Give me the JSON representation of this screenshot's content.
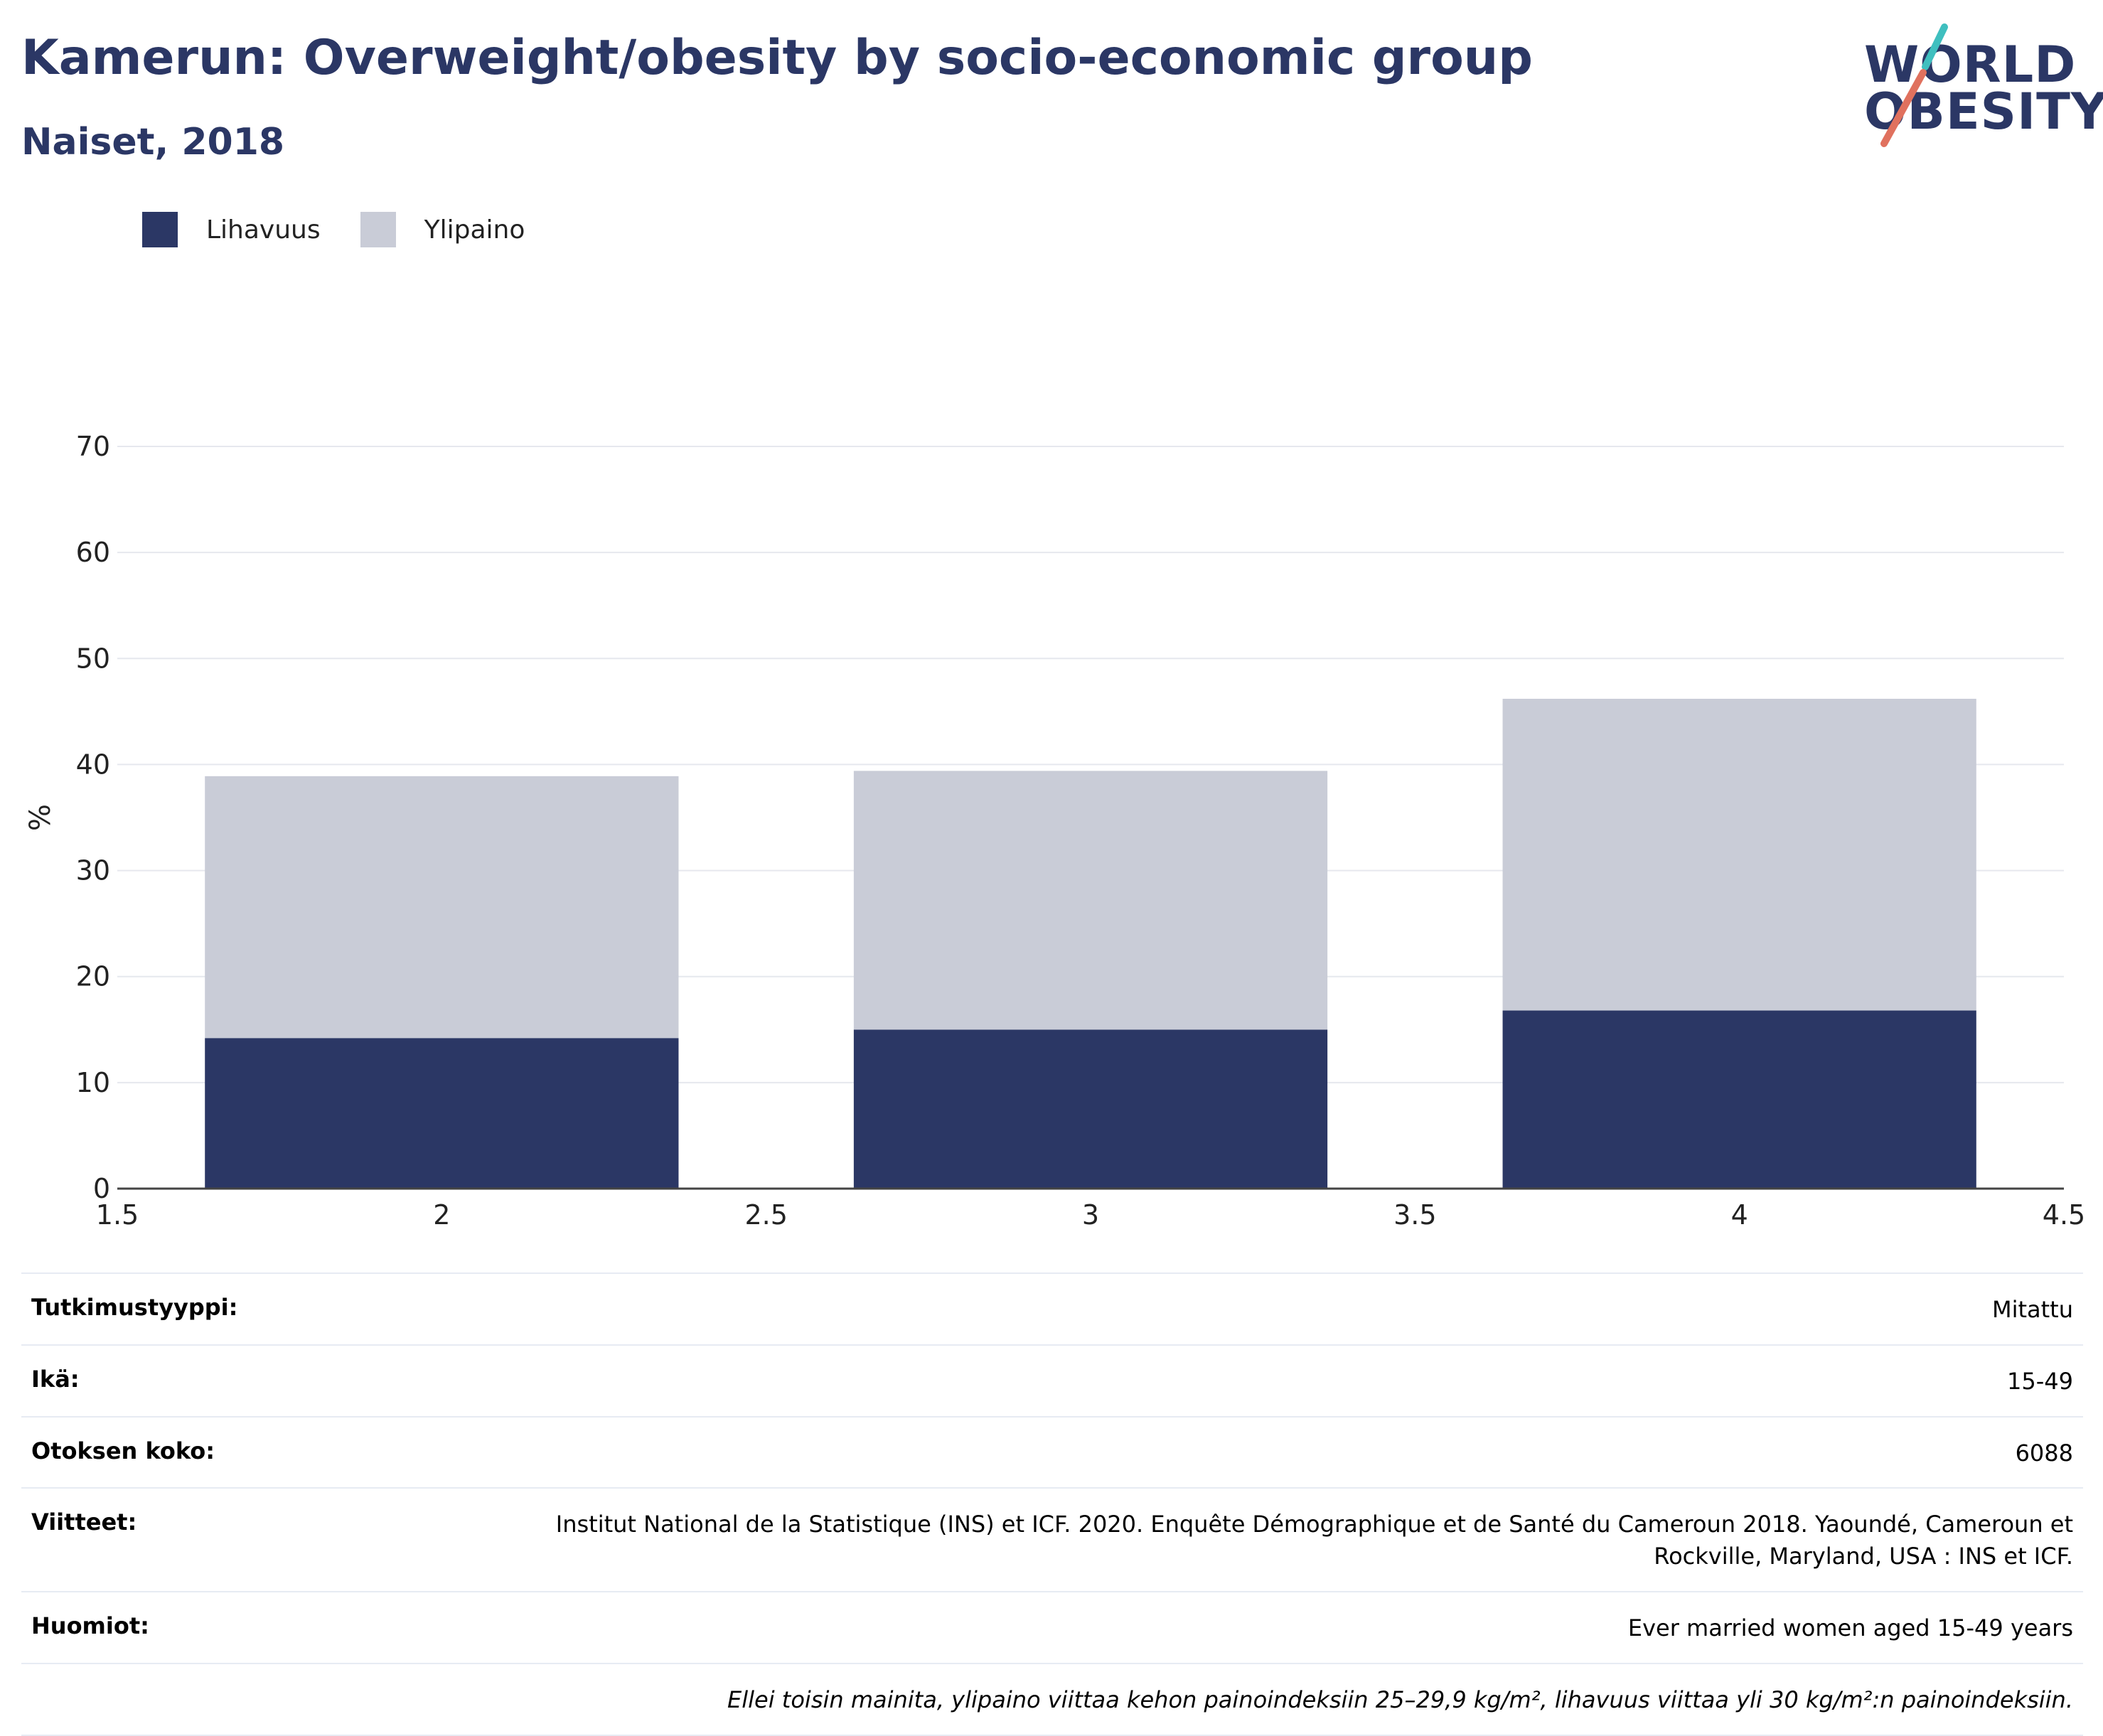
{
  "header": {
    "title": "Kamerun: Overweight/obesity by socio-economic group",
    "subtitle": "Naiset, 2018"
  },
  "logo": {
    "line1": "WORLD",
    "line2": "OBESITY",
    "slash_color_top": "#3fbfbf",
    "slash_color_bottom": "#e0715e"
  },
  "colors": {
    "obesity": "#2b3765",
    "overweight": "#c9ccd7",
    "text_dark": "#2b3765",
    "grid": "#e6e8ee"
  },
  "legend": [
    {
      "label": "Lihavuus",
      "color": "#2b3765"
    },
    {
      "label": "Ylipaino",
      "color": "#c9ccd7"
    }
  ],
  "chart_data": {
    "type": "bar",
    "stacked": true,
    "x": [
      2,
      3,
      4
    ],
    "series": [
      {
        "name": "Lihavuus",
        "values": [
          14.2,
          15.0,
          16.8
        ]
      },
      {
        "name": "Ylipaino",
        "values": [
          24.7,
          24.4,
          29.4
        ]
      }
    ],
    "ylabel": "%",
    "xlim": [
      1.5,
      4.5
    ],
    "ylim": [
      0,
      70
    ],
    "xticks": [
      "1.5",
      "2",
      "2.5",
      "3",
      "3.5",
      "4",
      "4.5"
    ],
    "yticks": [
      "0",
      "10",
      "20",
      "30",
      "40",
      "50",
      "60",
      "70"
    ],
    "grid": true,
    "legend_position": "top-left"
  },
  "info": [
    {
      "label": "Tutkimustyyppi:",
      "value": "Mitattu"
    },
    {
      "label": "Ikä:",
      "value": "15-49"
    },
    {
      "label": "Otoksen koko:",
      "value": "6088"
    },
    {
      "label": "Viitteet:",
      "value": "Institut National de la Statistique (INS) et ICF. 2020. Enquête Démographique et de Santé du Cameroun 2018. Yaoundé, Cameroun et Rockville, Maryland, USA : INS et ICF."
    },
    {
      "label": "Huomiot:",
      "value": "Ever married women aged 15-49 years"
    }
  ],
  "footnote": "Ellei toisin mainita, ylipaino viittaa kehon painoindeksiin 25–29,9 kg/m², lihavuus viittaa yli 30 kg/m²:n painoindeksiin."
}
